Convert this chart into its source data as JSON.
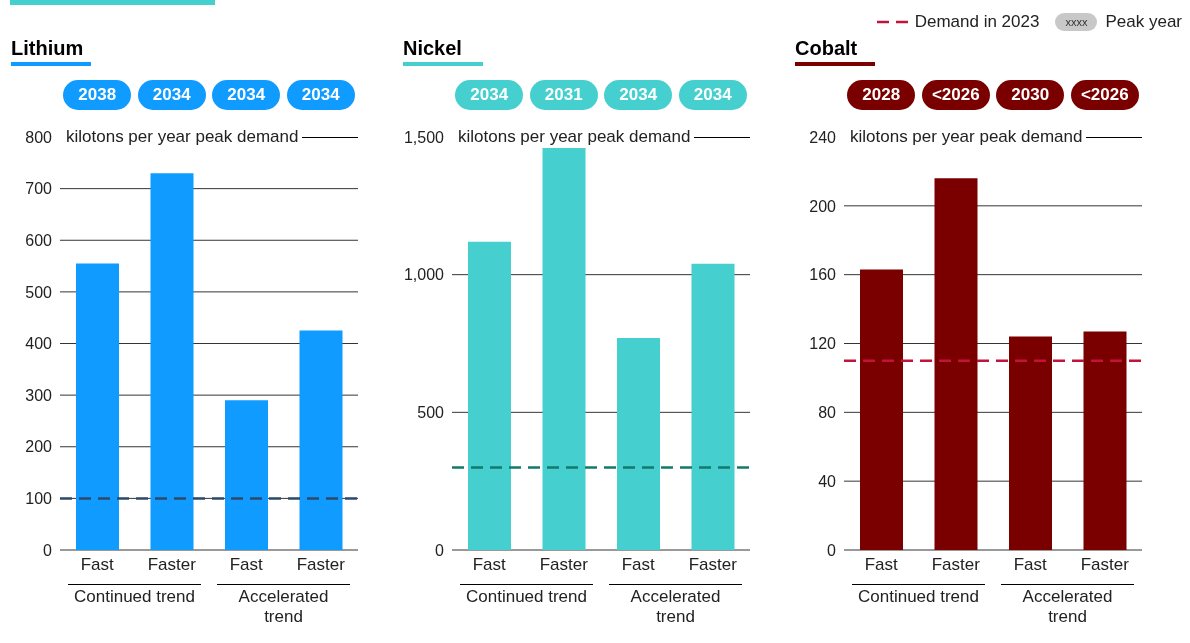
{
  "chart_data": [
    {
      "type": "bar",
      "title": "Lithium",
      "ylabel": "kilotons per year peak demand",
      "categories": [
        "Fast",
        "Faster",
        "Fast",
        "Faster"
      ],
      "series": [
        {
          "color": "#0f9bff",
          "values": [
            555,
            730,
            290,
            425
          ]
        }
      ],
      "ylim": [
        0,
        800
      ],
      "yticks": [
        0,
        100,
        200,
        300,
        400,
        500,
        600,
        700,
        800
      ],
      "grid": "y",
      "ref_lines": [
        {
          "axis": "y",
          "value": 100,
          "color": "#2e4a6b",
          "line_style": "dashed"
        }
      ],
      "annotations": [
        "2038",
        "2034",
        "2034",
        "2034",
        "Continued trend",
        "Accelerated trend"
      ]
    },
    {
      "type": "bar",
      "title": "Nickel",
      "ylabel": "kilotons per year peak demand",
      "categories": [
        "Fast",
        "Faster",
        "Fast",
        "Faster"
      ],
      "series": [
        {
          "color": "#45cfcf",
          "values": [
            1120,
            1460,
            770,
            1040
          ]
        }
      ],
      "ylim": [
        0,
        1500
      ],
      "yticks": [
        0,
        500,
        {
          "value": 1000,
          "label": "1,000"
        },
        {
          "value": 1500,
          "label": "1,500"
        }
      ],
      "grid": "y",
      "ref_lines": [
        {
          "axis": "y",
          "value": 300,
          "color": "#137a6e",
          "line_style": "dashed"
        }
      ],
      "annotations": [
        "2034",
        "2031",
        "2034",
        "2034",
        "Continued trend",
        "Accelerated trend"
      ]
    },
    {
      "type": "bar",
      "title": "Cobalt",
      "ylabel": "kilotons per year peak demand",
      "categories": [
        "Fast",
        "Faster",
        "Fast",
        "Faster"
      ],
      "series": [
        {
          "color": "#7a0000",
          "values": [
            163,
            216,
            124,
            127
          ]
        }
      ],
      "ylim": [
        0,
        240
      ],
      "yticks": [
        0,
        40,
        80,
        120,
        160,
        200,
        240
      ],
      "grid": "y",
      "legend": "top",
      "ref_lines": [
        {
          "axis": "y",
          "value": 110,
          "color": "#c0143c",
          "line_style": "dashed",
          "label": "Demand in 2023"
        }
      ],
      "annotations": [
        "2028",
        "<2026",
        "2030",
        "<2026",
        "Continued trend",
        "Accelerated trend",
        "xxxx",
        "Peak year"
      ]
    }
  ]
}
